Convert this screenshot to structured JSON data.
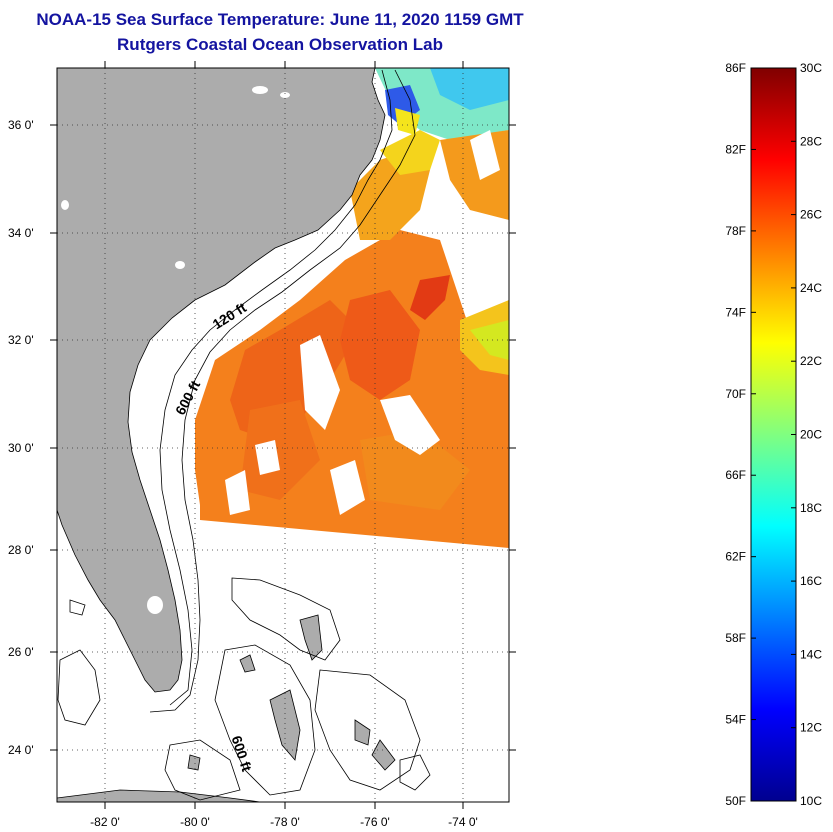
{
  "header": {
    "title": "NOAA-15 Sea Surface Temperature:  June 11, 2020 1159 GMT",
    "subtitle": "Rutgers Coastal Ocean Observation Lab"
  },
  "map": {
    "lat_labels": [
      "36 0'",
      "34 0'",
      "32 0'",
      "30 0'",
      "28 0'",
      "26 0'",
      "24 0'"
    ],
    "lon_labels": [
      "-82 0'",
      "-80 0'",
      "-78 0'",
      "-76 0'",
      "-74 0'"
    ],
    "contour_labels": [
      "120 ft",
      "600 ft",
      "600 ft"
    ],
    "colors": {
      "land": "#acacac",
      "ocean": "#ffffff",
      "warm_sst": "#f4801c",
      "hot_sst": "#ee5018",
      "cool_sst": "#f4d41c",
      "cold_sst": "#3aa8ee"
    }
  },
  "colorbar": {
    "f_labels": [
      "86F",
      "82F",
      "78F",
      "74F",
      "70F",
      "66F",
      "62F",
      "58F",
      "54F",
      "50F"
    ],
    "c_labels": [
      "30C",
      "28C",
      "26C",
      "24C",
      "22C",
      "20C",
      "18C",
      "16C",
      "14C",
      "12C",
      "10C"
    ],
    "range_c": [
      10,
      30
    ],
    "range_f": [
      50,
      86
    ],
    "colormap": "jet"
  }
}
